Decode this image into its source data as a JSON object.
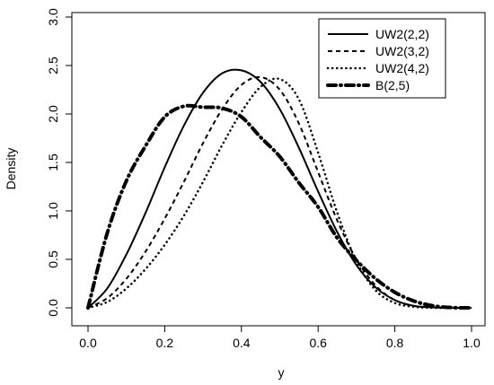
{
  "chart_data": {
    "type": "line",
    "title": "",
    "xlabel": "y",
    "ylabel": "Density",
    "xlim": [
      0,
      1
    ],
    "ylim": [
      0,
      3
    ],
    "x_ticks": [
      "0.0",
      "0.2",
      "0.4",
      "0.6",
      "0.8",
      "1.0"
    ],
    "y_ticks": [
      "0.0",
      "0.5",
      "1.0",
      "1.5",
      "2.0",
      "2.5",
      "3.0"
    ],
    "grid": false,
    "legend_position": "top-right",
    "x": [
      0.0,
      0.05,
      0.1,
      0.15,
      0.2,
      0.25,
      0.3,
      0.35,
      0.4,
      0.45,
      0.5,
      0.55,
      0.6,
      0.65,
      0.7,
      0.75,
      0.8,
      0.85,
      0.9,
      0.95,
      1.0
    ],
    "series": [
      {
        "name": "UW2(2,2)",
        "line_style": "solid",
        "values": [
          0.0,
          0.2,
          0.55,
          0.98,
          1.45,
          1.88,
          2.22,
          2.42,
          2.45,
          2.33,
          2.05,
          1.65,
          1.2,
          0.78,
          0.44,
          0.21,
          0.08,
          0.02,
          0.005,
          0.0,
          0.0
        ]
      },
      {
        "name": "UW2(3,2)",
        "line_style": "dashed",
        "values": [
          0.0,
          0.1,
          0.3,
          0.58,
          0.92,
          1.3,
          1.7,
          2.05,
          2.3,
          2.38,
          2.25,
          1.9,
          1.4,
          0.9,
          0.5,
          0.23,
          0.08,
          0.02,
          0.005,
          0.0,
          0.0
        ]
      },
      {
        "name": "UW2(4,2)",
        "line_style": "dotted",
        "values": [
          0.0,
          0.06,
          0.2,
          0.4,
          0.65,
          0.95,
          1.3,
          1.68,
          2.02,
          2.28,
          2.36,
          2.15,
          1.6,
          0.98,
          0.48,
          0.18,
          0.05,
          0.01,
          0.0,
          0.0,
          0.0
        ]
      },
      {
        "name": "B(2,5)",
        "line_style": "dashdot",
        "values": [
          0.0,
          0.77,
          1.31,
          1.67,
          1.97,
          2.08,
          2.07,
          2.06,
          1.97,
          1.76,
          1.56,
          1.29,
          1.04,
          0.72,
          0.49,
          0.3,
          0.16,
          0.07,
          0.02,
          0.002,
          0.0
        ]
      }
    ]
  }
}
